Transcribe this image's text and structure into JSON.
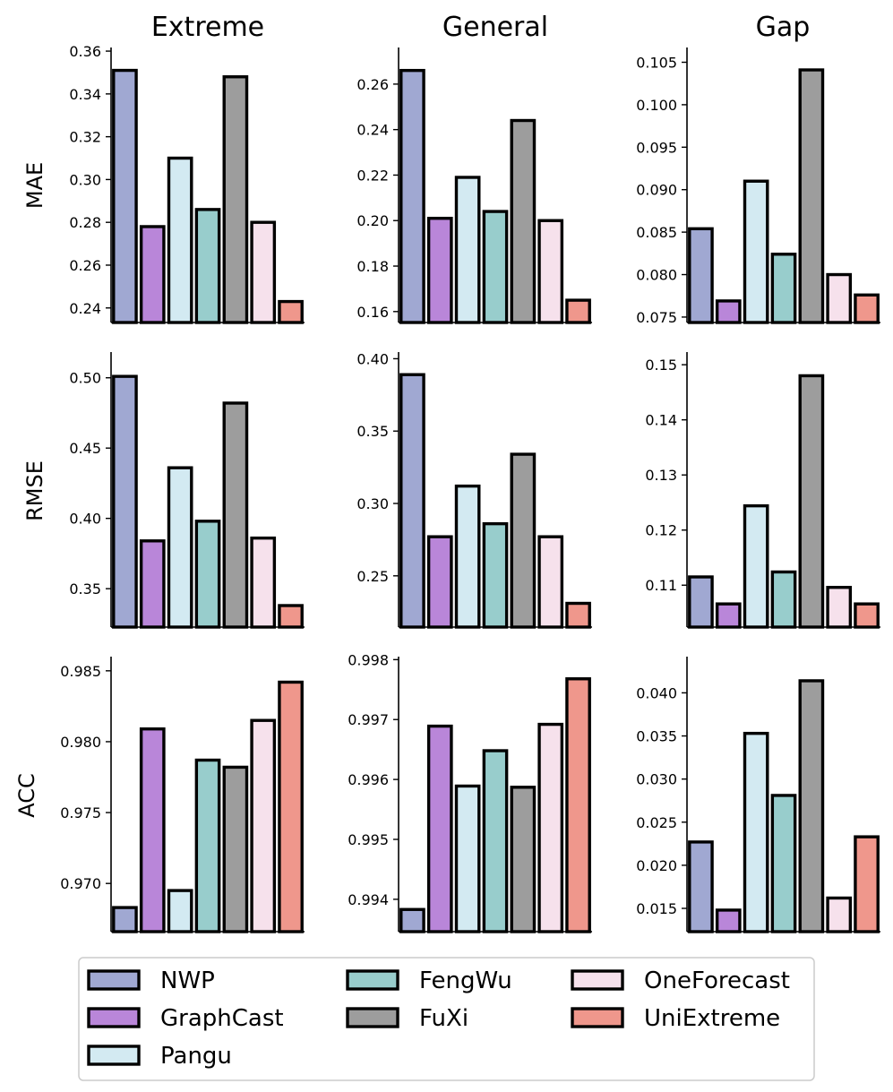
{
  "series_names": [
    "NWP",
    "GraphCast",
    "Pangu",
    "FengWu",
    "FuXi",
    "OneForecast",
    "UniExtreme"
  ],
  "series_colors": [
    "#a0a8d2",
    "#b986d9",
    "#d3eaf2",
    "#98cdcc",
    "#9d9d9d",
    "#f6e1ec",
    "#ef978c"
  ],
  "columns": [
    "Extreme",
    "General",
    "Gap"
  ],
  "rows": [
    "MAE",
    "RMSE",
    "ACC"
  ],
  "chart_data": [
    {
      "type": "bar",
      "row": "MAE",
      "column": "Extreme",
      "categories": [
        "NWP",
        "GraphCast",
        "Pangu",
        "FengWu",
        "FuXi",
        "OneForecast",
        "UniExtreme"
      ],
      "values": [
        0.351,
        0.278,
        0.31,
        0.286,
        0.348,
        0.28,
        0.243
      ],
      "ylim": [
        0.2332,
        0.3617
      ],
      "yticks": [
        0.24,
        0.26,
        0.28,
        0.3,
        0.32,
        0.34,
        0.36
      ],
      "ytick_labels": [
        "0.24",
        "0.26",
        "0.28",
        "0.30",
        "0.32",
        "0.34",
        "0.36"
      ]
    },
    {
      "type": "bar",
      "row": "MAE",
      "column": "General",
      "categories": [
        "NWP",
        "GraphCast",
        "Pangu",
        "FengWu",
        "FuXi",
        "OneForecast",
        "UniExtreme"
      ],
      "values": [
        0.266,
        0.201,
        0.219,
        0.204,
        0.244,
        0.2,
        0.165
      ],
      "ylim": [
        0.1552,
        0.2761
      ],
      "yticks": [
        0.16,
        0.18,
        0.2,
        0.22,
        0.24,
        0.26
      ],
      "ytick_labels": [
        "0.16",
        "0.18",
        "0.20",
        "0.22",
        "0.24",
        "0.26"
      ]
    },
    {
      "type": "bar",
      "row": "MAE",
      "column": "Gap",
      "categories": [
        "NWP",
        "GraphCast",
        "Pangu",
        "FengWu",
        "FuXi",
        "OneForecast",
        "UniExtreme"
      ],
      "values": [
        0.0854,
        0.0769,
        0.091,
        0.0824,
        0.1041,
        0.08,
        0.0776
      ],
      "ylim": [
        0.07436,
        0.10674
      ],
      "yticks": [
        0.075,
        0.08,
        0.085,
        0.09,
        0.095,
        0.1,
        0.105
      ],
      "ytick_labels": [
        "0.075",
        "0.080",
        "0.085",
        "0.090",
        "0.095",
        "0.100",
        "0.105"
      ]
    },
    {
      "type": "bar",
      "row": "RMSE",
      "column": "Extreme",
      "categories": [
        "NWP",
        "GraphCast",
        "Pangu",
        "FengWu",
        "FuXi",
        "OneForecast",
        "UniExtreme"
      ],
      "values": [
        0.501,
        0.384,
        0.436,
        0.398,
        0.482,
        0.386,
        0.338
      ],
      "ylim": [
        0.3227,
        0.5183
      ],
      "yticks": [
        0.35,
        0.4,
        0.45,
        0.5
      ],
      "ytick_labels": [
        "0.35",
        "0.40",
        "0.45",
        "0.50"
      ]
    },
    {
      "type": "bar",
      "row": "RMSE",
      "column": "General",
      "categories": [
        "NWP",
        "GraphCast",
        "Pangu",
        "FengWu",
        "FuXi",
        "OneForecast",
        "UniExtreme"
      ],
      "values": [
        0.389,
        0.277,
        0.312,
        0.286,
        0.334,
        0.277,
        0.231
      ],
      "ylim": [
        0.2146,
        0.4046
      ],
      "yticks": [
        0.25,
        0.3,
        0.35,
        0.4
      ],
      "ytick_labels": [
        "0.25",
        "0.30",
        "0.35",
        "0.40"
      ]
    },
    {
      "type": "bar",
      "row": "RMSE",
      "column": "Gap",
      "categories": [
        "NWP",
        "GraphCast",
        "Pangu",
        "FengWu",
        "FuXi",
        "OneForecast",
        "UniExtreme"
      ],
      "values": [
        0.1115,
        0.1066,
        0.1244,
        0.1124,
        0.148,
        0.1096,
        0.1066
      ],
      "ylim": [
        0.1024,
        0.1523
      ],
      "yticks": [
        0.11,
        0.12,
        0.13,
        0.14,
        0.15
      ],
      "ytick_labels": [
        "0.11",
        "0.12",
        "0.13",
        "0.14",
        "0.15"
      ]
    },
    {
      "type": "bar",
      "row": "ACC",
      "column": "Extreme",
      "categories": [
        "NWP",
        "GraphCast",
        "Pangu",
        "FengWu",
        "FuXi",
        "OneForecast",
        "UniExtreme"
      ],
      "values": [
        0.9683,
        0.9809,
        0.9695,
        0.9787,
        0.9782,
        0.9815,
        0.9842
      ],
      "ylim": [
        0.9666,
        0.986
      ],
      "yticks": [
        0.97,
        0.975,
        0.98,
        0.985
      ],
      "ytick_labels": [
        "0.970",
        "0.975",
        "0.980",
        "0.985"
      ]
    },
    {
      "type": "bar",
      "row": "ACC",
      "column": "General",
      "categories": [
        "NWP",
        "GraphCast",
        "Pangu",
        "FengWu",
        "FuXi",
        "OneForecast",
        "UniExtreme"
      ],
      "values": [
        0.99383,
        0.99689,
        0.99589,
        0.99648,
        0.99587,
        0.99692,
        0.99768
      ],
      "ylim": [
        0.99346,
        0.99805
      ],
      "yticks": [
        0.994,
        0.995,
        0.996,
        0.997,
        0.998
      ],
      "ytick_labels": [
        "0.994",
        "0.995",
        "0.996",
        "0.997",
        "0.998"
      ]
    },
    {
      "type": "bar",
      "row": "ACC",
      "column": "Gap",
      "categories": [
        "NWP",
        "GraphCast",
        "Pangu",
        "FengWu",
        "FuXi",
        "OneForecast",
        "UniExtreme"
      ],
      "values": [
        0.0227,
        0.0148,
        0.0353,
        0.0281,
        0.0414,
        0.0162,
        0.0233
      ],
      "ylim": [
        0.0123,
        0.0442
      ],
      "yticks": [
        0.015,
        0.02,
        0.025,
        0.03,
        0.035,
        0.04
      ],
      "ytick_labels": [
        "0.015",
        "0.020",
        "0.025",
        "0.030",
        "0.035",
        "0.040"
      ]
    }
  ]
}
